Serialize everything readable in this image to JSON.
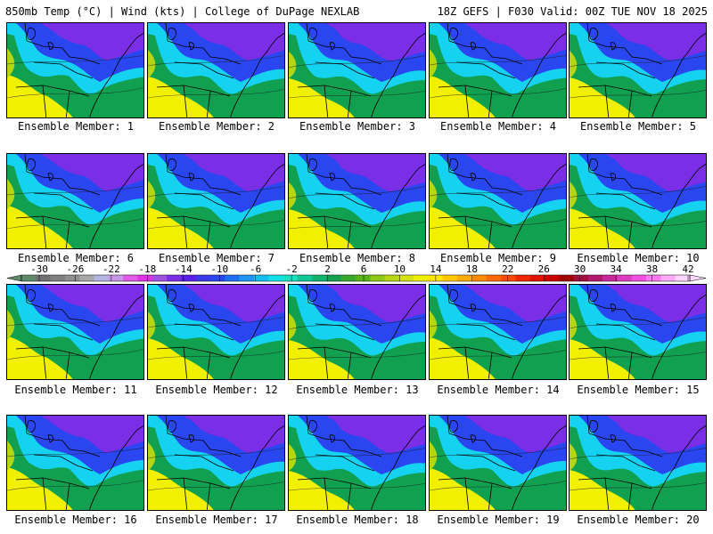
{
  "header": {
    "title": "850mb Temp (°C) | Wind (kts) | College of DuPage NEXLAB",
    "run_info": "18Z GEFS | F030 Valid: 00Z TUE NOV 18 2025"
  },
  "members": [
    "Ensemble Member: 1",
    "Ensemble Member: 2",
    "Ensemble Member: 3",
    "Ensemble Member: 4",
    "Ensemble Member: 5",
    "Ensemble Member: 6",
    "Ensemble Member: 7",
    "Ensemble Member: 8",
    "Ensemble Member: 9",
    "Ensemble Member: 10",
    "Ensemble Member: 11",
    "Ensemble Member: 12",
    "Ensemble Member: 13",
    "Ensemble Member: 14",
    "Ensemble Member: 15",
    "Ensemble Member: 16",
    "Ensemble Member: 17",
    "Ensemble Member: 18",
    "Ensemble Member: 19",
    "Ensemble Member: 20"
  ],
  "colorbar": {
    "tick_labels": [
      "-30",
      "-26",
      "-22",
      "-18",
      "-14",
      "-10",
      "-6",
      "-2",
      "2",
      "6",
      "10",
      "14",
      "18",
      "22",
      "26",
      "30",
      "34",
      "38",
      "42"
    ],
    "colors": [
      "#5f8a6a",
      "#707070",
      "#808080",
      "#909090",
      "#a8a8a8",
      "#b4b4e0",
      "#c896e6",
      "#e15be6",
      "#e032e6",
      "#a050e0",
      "#7a2ee6",
      "#5a20e8",
      "#3a3ae6",
      "#2a46f0",
      "#1e6ef0",
      "#1e96f0",
      "#14bff0",
      "#11e0e6",
      "#18e0c0",
      "#10c896",
      "#10b46e",
      "#14a050",
      "#38a82e",
      "#56b414",
      "#8cc814",
      "#b4d614",
      "#d6e014",
      "#eef000",
      "#ffe600",
      "#ffc800",
      "#ffaa00",
      "#ff8c00",
      "#ff6a00",
      "#ff4a00",
      "#f02800",
      "#e01400",
      "#c80000",
      "#a00000",
      "#a01040",
      "#b4186e",
      "#c8289a",
      "#dc3cbe",
      "#f050e0",
      "#ff78f0",
      "#ffaaf8",
      "#ffd6ff"
    ]
  },
  "palette": {
    "purple": "#7a2ee6",
    "blue": "#2a46f0",
    "cyan": "#14d2f0",
    "green": "#10a050",
    "yellow": "#f0f000"
  }
}
